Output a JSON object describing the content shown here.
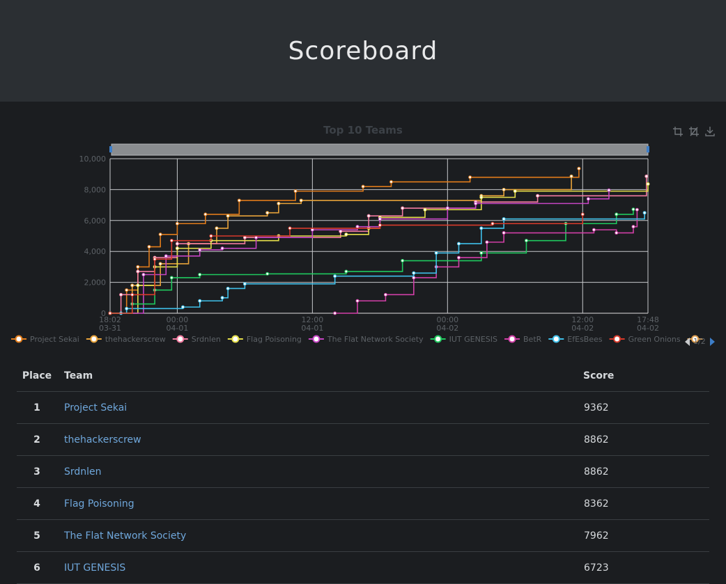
{
  "page": {
    "title": "Scoreboard"
  },
  "chart_data": {
    "type": "line",
    "title": "Top 10 Teams",
    "x_range": [
      "03-31 18:02",
      "04-02 17:48"
    ],
    "ylim": [
      0,
      10000
    ],
    "yticks": [
      "0",
      "2,000",
      "4,000",
      "6,000",
      "8,000",
      "10,000"
    ],
    "xticks": [
      {
        "t": "03-31 18:02",
        "top": "18:02",
        "bottom": "03-31"
      },
      {
        "t": "04-01 00:00",
        "top": "00:00",
        "bottom": "04-01"
      },
      {
        "t": "04-01 12:00",
        "top": "12:00",
        "bottom": "04-01"
      },
      {
        "t": "04-02 00:00",
        "top": "00:00",
        "bottom": "04-02"
      },
      {
        "t": "04-02 12:00",
        "top": "12:00",
        "bottom": "04-02"
      },
      {
        "t": "04-02 17:48",
        "top": "17:48",
        "bottom": "04-02"
      }
    ],
    "legend_page": "1/2",
    "legend_position": "bottom",
    "grid": true,
    "series": [
      {
        "name": "Project Sekai",
        "color": "#e07b1a",
        "points": [
          [
            "03-31 18:02",
            0
          ],
          [
            "03-31 19:30",
            1500
          ],
          [
            "03-31 20:30",
            3000
          ],
          [
            "03-31 21:30",
            4300
          ],
          [
            "03-31 22:30",
            5100
          ],
          [
            "04-01 00:00",
            5800
          ],
          [
            "04-01 02:30",
            6400
          ],
          [
            "04-01 05:30",
            7300
          ],
          [
            "04-01 10:30",
            7900
          ],
          [
            "04-01 16:30",
            8200
          ],
          [
            "04-01 19:00",
            8500
          ],
          [
            "04-02 02:00",
            8800
          ],
          [
            "04-02 11:40",
            9362
          ]
        ]
      },
      {
        "name": "thehackerscrew",
        "color": "#e8a33a",
        "points": [
          [
            "03-31 18:02",
            0
          ],
          [
            "03-31 20:00",
            1800
          ],
          [
            "03-31 22:30",
            3200
          ],
          [
            "04-01 01:00",
            4500
          ],
          [
            "04-01 03:30",
            5500
          ],
          [
            "04-01 04:30",
            6300
          ],
          [
            "04-01 08:00",
            6500
          ],
          [
            "04-01 09:00",
            7100
          ],
          [
            "04-01 11:00",
            7300
          ],
          [
            "04-02 03:00",
            7600
          ],
          [
            "04-02 05:00",
            8000
          ],
          [
            "04-02 11:00",
            8862
          ]
        ]
      },
      {
        "name": "Srdnlen",
        "color": "#f27ba0",
        "points": [
          [
            "03-31 18:02",
            0
          ],
          [
            "03-31 19:00",
            1200
          ],
          [
            "03-31 20:30",
            2700
          ],
          [
            "03-31 22:00",
            3600
          ],
          [
            "04-01 00:00",
            4500
          ],
          [
            "04-01 06:00",
            4900
          ],
          [
            "04-01 14:30",
            5300
          ],
          [
            "04-01 17:00",
            6300
          ],
          [
            "04-01 20:00",
            6800
          ],
          [
            "04-02 02:30",
            7200
          ],
          [
            "04-02 08:00",
            7600
          ],
          [
            "04-02 17:40",
            8862
          ]
        ]
      },
      {
        "name": "Flag Poisoning",
        "color": "#e6e04a",
        "points": [
          [
            "03-31 18:02",
            0
          ],
          [
            "03-31 20:30",
            1800
          ],
          [
            "03-31 22:00",
            3000
          ],
          [
            "04-01 00:00",
            4200
          ],
          [
            "04-01 03:00",
            4700
          ],
          [
            "04-01 09:00",
            5000
          ],
          [
            "04-01 15:00",
            5100
          ],
          [
            "04-01 17:00",
            5500
          ],
          [
            "04-01 18:00",
            6200
          ],
          [
            "04-01 22:00",
            6700
          ],
          [
            "04-02 03:00",
            7500
          ],
          [
            "04-02 06:00",
            7900
          ],
          [
            "04-02 17:48",
            8362
          ]
        ]
      },
      {
        "name": "The Flat Network Society",
        "color": "#c645c4",
        "points": [
          [
            "03-31 18:02",
            0
          ],
          [
            "03-31 21:00",
            2500
          ],
          [
            "03-31 23:00",
            3700
          ],
          [
            "04-01 02:00",
            4100
          ],
          [
            "04-01 04:00",
            4200
          ],
          [
            "04-01 07:00",
            4900
          ],
          [
            "04-01 12:00",
            5400
          ],
          [
            "04-01 16:00",
            5600
          ],
          [
            "04-01 18:00",
            6100
          ],
          [
            "04-02 00:00",
            6800
          ],
          [
            "04-02 02:30",
            7100
          ],
          [
            "04-02 12:30",
            7400
          ],
          [
            "04-02 14:20",
            7962
          ]
        ]
      },
      {
        "name": "IUT GENESIS",
        "color": "#1fc95e",
        "points": [
          [
            "03-31 18:02",
            0
          ],
          [
            "03-31 20:00",
            600
          ],
          [
            "03-31 22:00",
            1500
          ],
          [
            "03-31 23:30",
            2300
          ],
          [
            "04-01 02:00",
            2500
          ],
          [
            "04-01 08:00",
            2550
          ],
          [
            "04-01 15:00",
            2700
          ],
          [
            "04-01 20:00",
            3400
          ],
          [
            "04-02 03:00",
            3900
          ],
          [
            "04-02 07:00",
            4700
          ],
          [
            "04-02 10:30",
            5800
          ],
          [
            "04-02 15:00",
            6400
          ],
          [
            "04-02 16:30",
            6723
          ]
        ]
      },
      {
        "name": "BetR",
        "color": "#d13fa7",
        "points": [
          [
            "04-01 14:00",
            0
          ],
          [
            "04-01 16:00",
            800
          ],
          [
            "04-01 18:30",
            1200
          ],
          [
            "04-01 21:00",
            2300
          ],
          [
            "04-01 23:00",
            3000
          ],
          [
            "04-02 01:00",
            3600
          ],
          [
            "04-02 03:30",
            4600
          ],
          [
            "04-02 05:00",
            5200
          ],
          [
            "04-02 13:00",
            5400
          ],
          [
            "04-02 15:00",
            5200
          ],
          [
            "04-02 16:30",
            5600
          ],
          [
            "04-02 16:50",
            6700
          ]
        ]
      },
      {
        "name": "EfEsBees",
        "color": "#3fc0ea",
        "points": [
          [
            "03-31 19:00",
            0
          ],
          [
            "03-31 19:30",
            300
          ],
          [
            "04-01 00:30",
            400
          ],
          [
            "04-01 02:00",
            800
          ],
          [
            "04-01 04:00",
            1000
          ],
          [
            "04-01 04:30",
            1600
          ],
          [
            "04-01 06:00",
            1900
          ],
          [
            "04-01 14:00",
            2400
          ],
          [
            "04-01 21:00",
            2600
          ],
          [
            "04-01 23:00",
            3900
          ],
          [
            "04-02 01:00",
            4500
          ],
          [
            "04-02 03:00",
            5500
          ],
          [
            "04-02 05:00",
            6100
          ],
          [
            "04-02 17:30",
            6500
          ]
        ]
      },
      {
        "name": "Green Onions",
        "color": "#d83a2b",
        "points": [
          [
            "03-31 18:02",
            0
          ],
          [
            "03-31 20:00",
            1200
          ],
          [
            "03-31 22:00",
            3500
          ],
          [
            "03-31 23:30",
            4700
          ],
          [
            "04-01 03:00",
            5000
          ],
          [
            "04-01 10:00",
            5500
          ],
          [
            "04-01 18:00",
            5700
          ],
          [
            "04-02 04:00",
            5800
          ],
          [
            "04-02 12:00",
            6400
          ]
        ]
      },
      {
        "name": "",
        "color": "#e0a050",
        "points": []
      }
    ]
  },
  "table": {
    "headers": {
      "place": "Place",
      "team": "Team",
      "score": "Score"
    },
    "rows": [
      {
        "place": "1",
        "team": "Project Sekai",
        "score": "9362"
      },
      {
        "place": "2",
        "team": "thehackerscrew",
        "score": "8862"
      },
      {
        "place": "3",
        "team": "Srdnlen",
        "score": "8862"
      },
      {
        "place": "4",
        "team": "Flag Poisoning",
        "score": "8362"
      },
      {
        "place": "5",
        "team": "The Flat Network Society",
        "score": "7962"
      },
      {
        "place": "6",
        "team": "IUT GENESIS",
        "score": "6723"
      }
    ]
  },
  "toolbar": {
    "icons": [
      "zoom-icon",
      "zoom-reset-icon",
      "download-icon"
    ]
  }
}
